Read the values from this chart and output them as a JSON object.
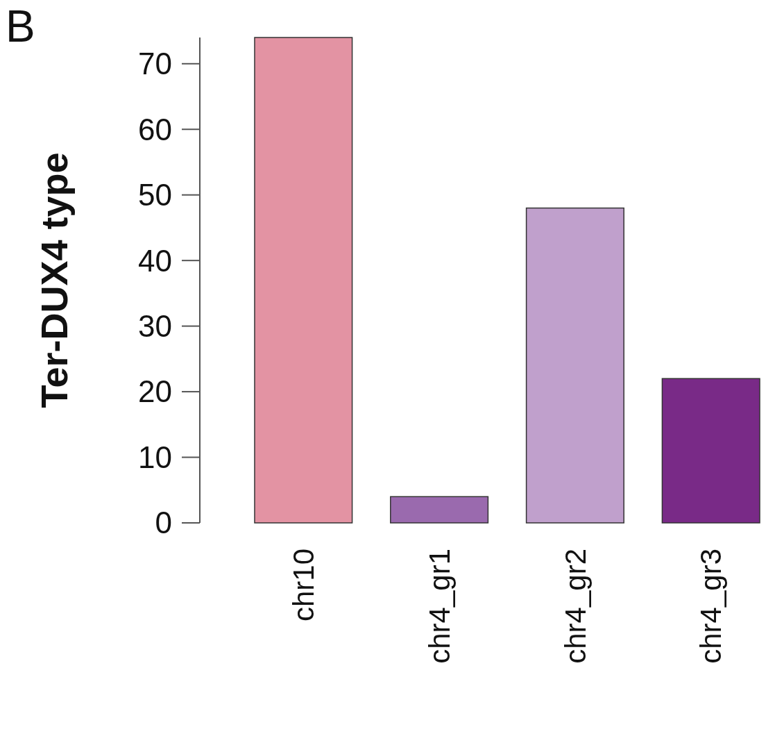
{
  "chart_data": {
    "type": "bar",
    "ylabel": "Ter-DUX4 type",
    "annotations": [
      "B"
    ],
    "categories": [
      "chr10",
      "chr4_gr1",
      "chr4_gr2",
      "chr4_gr3"
    ],
    "values": [
      74,
      4,
      48,
      22
    ],
    "colors": [
      "#e393a3",
      "#9a6aae",
      "#c0a0cc",
      "#792a87"
    ],
    "ylim": [
      0,
      74
    ],
    "yticks": [
      0,
      10,
      20,
      30,
      40,
      50,
      60,
      70
    ],
    "grid": false
  }
}
